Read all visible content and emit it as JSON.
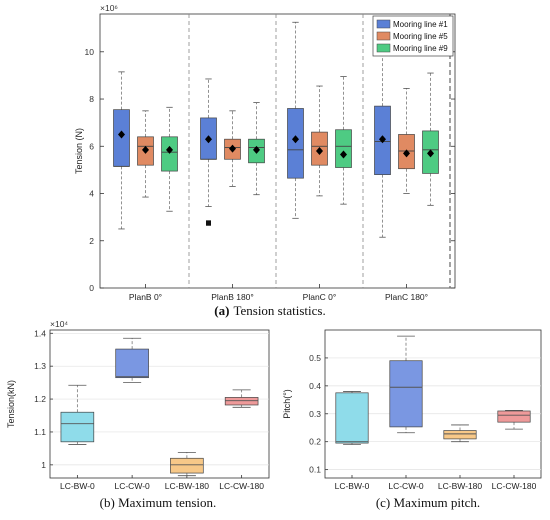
{
  "chart_data": [
    {
      "type": "box",
      "panel": "a",
      "caption_prefix": "(a)",
      "caption_text": "Tension statistics.",
      "ylabel": "Tension (N)",
      "yexp": "×10⁶",
      "ylim": [
        0,
        11.6
      ],
      "yticks": [
        0,
        2,
        4,
        6,
        8,
        10
      ],
      "groups": [
        "PlanB 0°",
        "PlanB 180°",
        "PlanC 0°",
        "PlanC 180°"
      ],
      "legend_position": "top-right",
      "series": [
        {
          "name": "Mooring line #1",
          "color": "#5b80d6"
        },
        {
          "name": "Mooring line #5",
          "color": "#e08a62"
        },
        {
          "name": "Mooring line #9",
          "color": "#4ecb83"
        }
      ],
      "boxes": [
        {
          "group": 0,
          "series": 0,
          "wlo": 2.5,
          "q1": 5.15,
          "med": 5.15,
          "q3": 7.55,
          "whi": 9.15,
          "mean": 6.5
        },
        {
          "group": 0,
          "series": 1,
          "wlo": 3.85,
          "q1": 5.2,
          "med": 6.0,
          "q3": 6.4,
          "whi": 7.5,
          "mean": 5.85
        },
        {
          "group": 0,
          "series": 2,
          "wlo": 3.25,
          "q1": 4.95,
          "med": 5.75,
          "q3": 6.4,
          "whi": 7.65,
          "mean": 5.85
        },
        {
          "group": 1,
          "series": 0,
          "wlo": 3.45,
          "q1": 5.45,
          "med": 5.45,
          "q3": 7.2,
          "whi": 8.85,
          "mean": 6.3
        },
        {
          "group": 1,
          "series": 1,
          "wlo": 4.3,
          "q1": 5.45,
          "med": 5.95,
          "q3": 6.3,
          "whi": 7.5,
          "mean": 5.9
        },
        {
          "group": 1,
          "series": 2,
          "wlo": 3.95,
          "q1": 5.3,
          "med": 5.95,
          "q3": 6.3,
          "whi": 7.85,
          "mean": 5.85
        },
        {
          "group": 2,
          "series": 0,
          "wlo": 2.95,
          "q1": 4.65,
          "med": 5.85,
          "q3": 7.6,
          "whi": 11.25,
          "mean": 6.3
        },
        {
          "group": 2,
          "series": 1,
          "wlo": 3.9,
          "q1": 5.2,
          "med": 6.0,
          "q3": 6.6,
          "whi": 8.55,
          "mean": 5.8
        },
        {
          "group": 2,
          "series": 2,
          "wlo": 3.55,
          "q1": 5.1,
          "med": 6.0,
          "q3": 6.7,
          "whi": 8.95,
          "mean": 5.65
        },
        {
          "group": 3,
          "series": 0,
          "wlo": 2.15,
          "q1": 4.8,
          "med": 6.2,
          "q3": 7.7,
          "whi": 11.3,
          "mean": 6.3
        },
        {
          "group": 3,
          "series": 1,
          "wlo": 4.0,
          "q1": 5.05,
          "med": 5.8,
          "q3": 6.5,
          "whi": 8.45,
          "mean": 5.7
        },
        {
          "group": 3,
          "series": 2,
          "wlo": 3.5,
          "q1": 4.85,
          "med": 5.85,
          "q3": 6.65,
          "whi": 9.1,
          "mean": 5.7
        }
      ],
      "outliers": [
        {
          "group": 1,
          "series": 0,
          "y": 2.7
        },
        {
          "group": 1,
          "series": 0,
          "y": 2.8
        }
      ]
    },
    {
      "type": "box",
      "panel": "b",
      "caption": "(b) Maximum tension.",
      "ylabel": "Tension(kN)",
      "yexp": "×10⁴",
      "ylim": [
        0.96,
        1.41
      ],
      "yticks": [
        1.0,
        1.1,
        1.2,
        1.3,
        1.4
      ],
      "ytick_labels": [
        "1",
        "1.1",
        "1.2",
        "1.3",
        "1.4"
      ],
      "categories": [
        "LC-BW-0",
        "LC-CW-0",
        "LC-BW-180",
        "LC-CW-180"
      ],
      "boxes": [
        {
          "color": "#8fdcea",
          "wlo": 1.062,
          "q1": 1.07,
          "med": 1.125,
          "q3": 1.16,
          "whi": 1.242
        },
        {
          "color": "#7a97e2",
          "wlo": 1.25,
          "q1": 1.265,
          "med": 1.268,
          "q3": 1.352,
          "whi": 1.385
        },
        {
          "color": "#f7c888",
          "wlo": 0.967,
          "q1": 0.975,
          "med": 1.0,
          "q3": 1.02,
          "whi": 1.038
        },
        {
          "color": "#ee9a9a",
          "wlo": 1.175,
          "q1": 1.182,
          "med": 1.195,
          "q3": 1.205,
          "whi": 1.228
        }
      ]
    },
    {
      "type": "box",
      "panel": "c",
      "caption": "(c) Maximum pitch.",
      "ylabel": "Pitch(°)",
      "ylim": [
        0.07,
        0.6
      ],
      "yticks": [
        0.1,
        0.2,
        0.3,
        0.4,
        0.5
      ],
      "ytick_labels": [
        "0.1",
        "0.2",
        "0.3",
        "0.4",
        "0.5"
      ],
      "categories": [
        "LC-BW-0",
        "LC-CW-0",
        "LC-BW-180",
        "LC-CW-180"
      ],
      "boxes": [
        {
          "color": "#8fdcea",
          "wlo": 0.19,
          "q1": 0.195,
          "med": 0.2,
          "q3": 0.375,
          "whi": 0.38
        },
        {
          "color": "#7a97e2",
          "wlo": 0.232,
          "q1": 0.253,
          "med": 0.395,
          "q3": 0.49,
          "whi": 0.578
        },
        {
          "color": "#f7c888",
          "wlo": 0.2,
          "q1": 0.21,
          "med": 0.228,
          "q3": 0.24,
          "whi": 0.26
        },
        {
          "color": "#ee9a9a",
          "wlo": 0.245,
          "q1": 0.27,
          "med": 0.295,
          "q3": 0.31,
          "whi": 0.312
        }
      ]
    }
  ]
}
